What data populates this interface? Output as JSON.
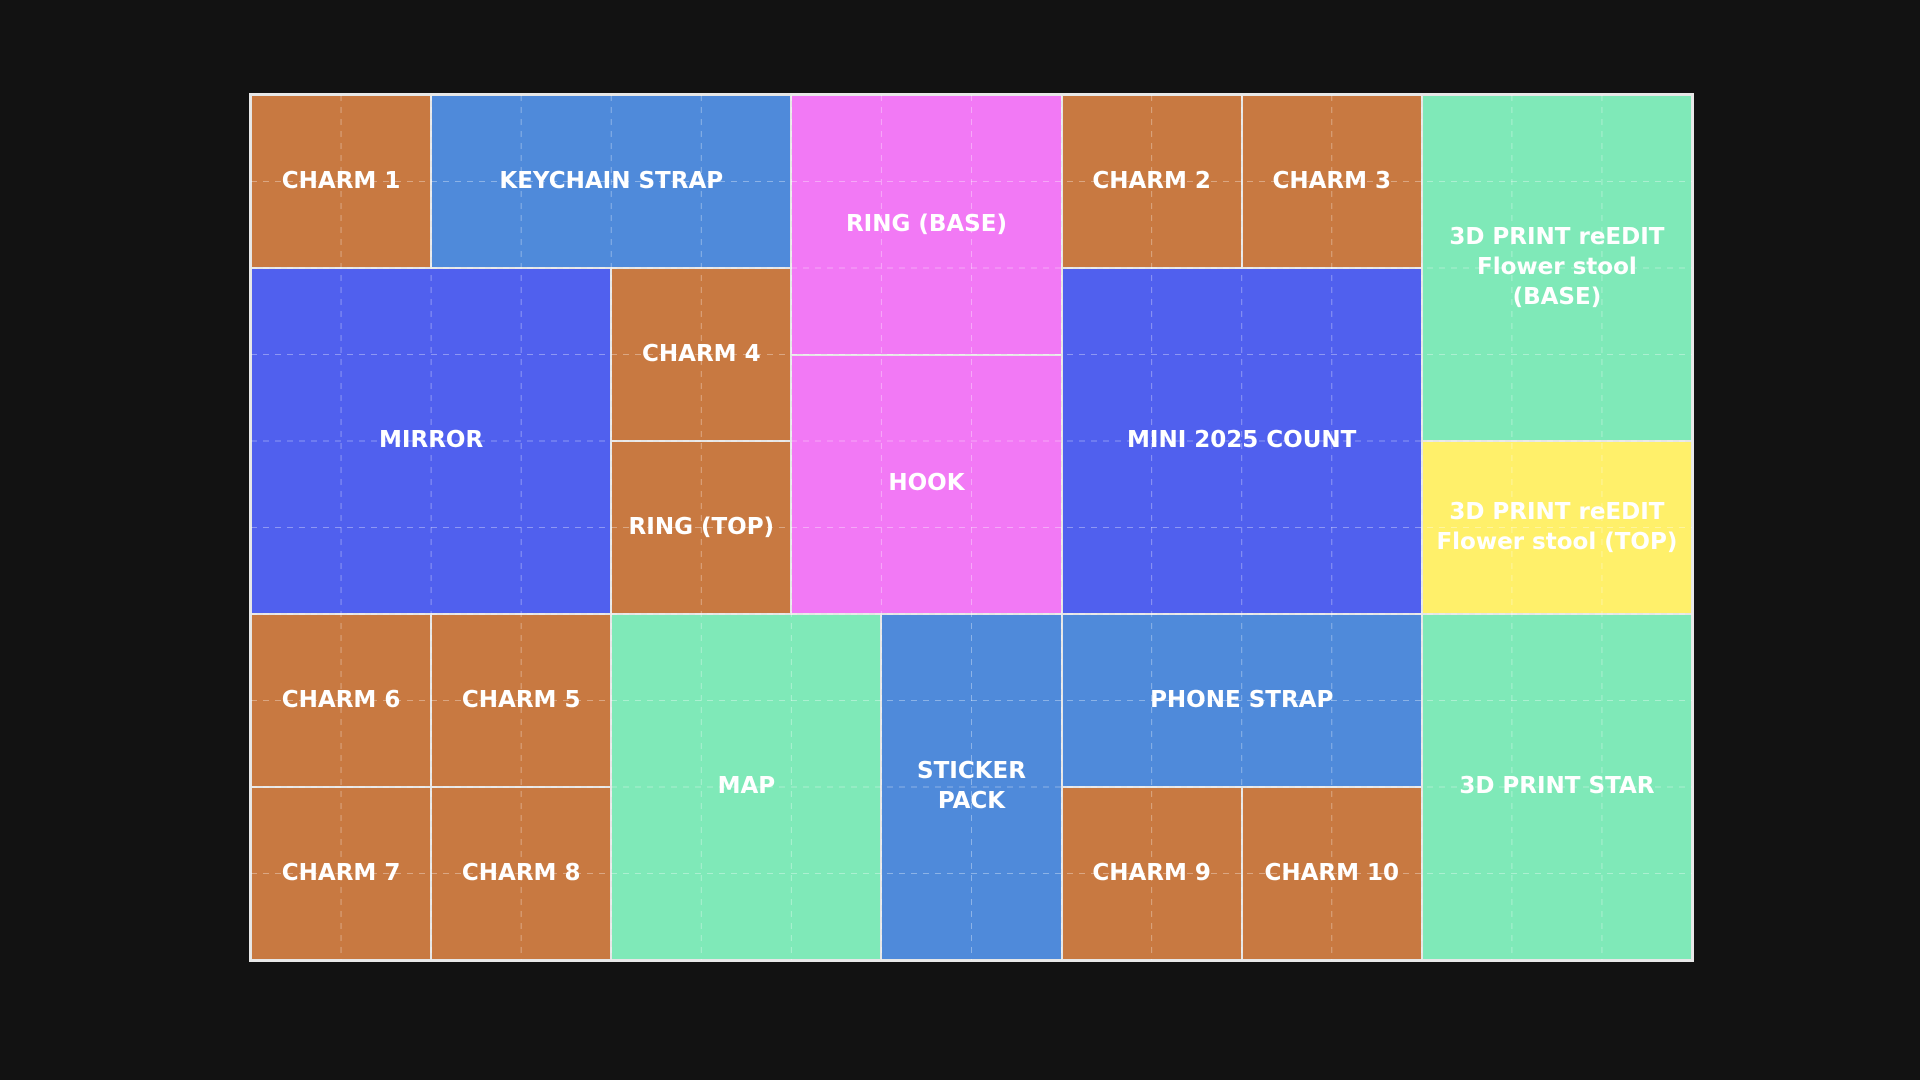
{
  "colors": {
    "background": "#121212",
    "orange": "#c87941",
    "blue": "#4f8ada",
    "indigo": "#5060ee",
    "pink": "#f279f5",
    "green": "#7fe9b8",
    "yellow": "#fff06a"
  },
  "blocks": [
    {
      "label": "CHARM 1",
      "color": "orange"
    },
    {
      "label": "KEYCHAIN STRAP",
      "color": "blue"
    },
    {
      "label": "RING (BASE)",
      "color": "pink"
    },
    {
      "label": "CHARM 2",
      "color": "orange"
    },
    {
      "label": "CHARM 3",
      "color": "orange"
    },
    {
      "label": "3D PRINT reEDIT\nFlower stool (BASE)",
      "color": "green"
    },
    {
      "label": "MIRROR",
      "color": "indigo"
    },
    {
      "label": "CHARM 4",
      "color": "orange"
    },
    {
      "label": "RING (TOP)",
      "color": "orange"
    },
    {
      "label": "HOOK",
      "color": "pink"
    },
    {
      "label": "MINI 2025 COUNT",
      "color": "indigo"
    },
    {
      "label": "3D PRINT reEDIT\nFlower stool (TOP)",
      "color": "yellow"
    },
    {
      "label": "CHARM 6",
      "color": "orange"
    },
    {
      "label": "CHARM 5",
      "color": "orange"
    },
    {
      "label": "CHARM 7",
      "color": "orange"
    },
    {
      "label": "CHARM 8",
      "color": "orange"
    },
    {
      "label": "MAP",
      "color": "green"
    },
    {
      "label": "STICKER\nPACK",
      "color": "blue"
    },
    {
      "label": "PHONE STRAP",
      "color": "blue"
    },
    {
      "label": "CHARM 9",
      "color": "orange"
    },
    {
      "label": "CHARM 10",
      "color": "orange"
    },
    {
      "label": "3D PRINT STAR",
      "color": "green"
    }
  ]
}
